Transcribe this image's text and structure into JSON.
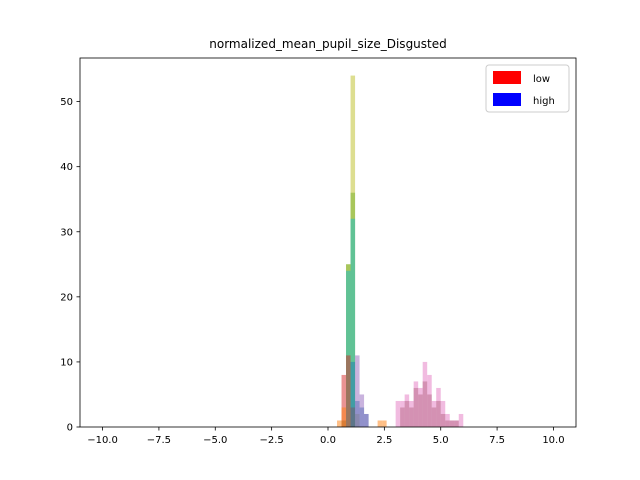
{
  "chart_data": {
    "type": "bar",
    "title": "normalized_mean_pupil_size_Disgusted",
    "xlabel": "",
    "ylabel": "",
    "xlim": [
      -11,
      11
    ],
    "ylim": [
      0,
      56.7
    ],
    "xticks": [
      -10.0,
      -7.5,
      -5.0,
      -2.5,
      0.0,
      2.5,
      5.0,
      7.5,
      10.0
    ],
    "xtick_labels": [
      "−10.0",
      "−7.5",
      "−5.0",
      "−2.5",
      "0.0",
      "2.5",
      "5.0",
      "7.5",
      "10.0"
    ],
    "yticks": [
      0,
      10,
      20,
      30,
      40,
      50
    ],
    "ytick_labels": [
      "0",
      "10",
      "20",
      "30",
      "40",
      "50"
    ],
    "bin_width": 0.2,
    "grid": false,
    "legend": {
      "position": "top-right",
      "entries": [
        {
          "label": "low",
          "color": "#ff0000"
        },
        {
          "label": "high",
          "color": "#0000ff"
        }
      ]
    },
    "series": [
      {
        "color": "#2ca02c",
        "opacity": 0.5,
        "bins": [
          [
            0.6,
            1
          ],
          [
            0.8,
            25
          ],
          [
            1.0,
            36
          ]
        ]
      },
      {
        "color": "#bcbd22",
        "opacity": 0.5,
        "bins": [
          [
            0.8,
            25
          ],
          [
            1.0,
            54
          ],
          [
            1.2,
            2
          ]
        ]
      },
      {
        "color": "#17becf",
        "opacity": 0.5,
        "bins": [
          [
            0.8,
            24
          ],
          [
            1.0,
            32
          ]
        ]
      },
      {
        "color": "#d62728",
        "opacity": 0.5,
        "bins": [
          [
            0.6,
            8
          ],
          [
            0.8,
            11
          ],
          [
            1.0,
            3
          ]
        ]
      },
      {
        "color": "#1f77b4",
        "opacity": 0.5,
        "bins": [
          [
            1.0,
            10
          ],
          [
            1.2,
            4
          ],
          [
            1.4,
            3
          ],
          [
            1.6,
            2
          ]
        ]
      },
      {
        "color": "#9467bd",
        "opacity": 0.5,
        "bins": [
          [
            1.2,
            11
          ],
          [
            1.4,
            5
          ],
          [
            1.6,
            2
          ]
        ]
      },
      {
        "color": "#ff7f0e",
        "opacity": 0.5,
        "bins": [
          [
            0.4,
            1
          ],
          [
            0.6,
            3
          ],
          [
            2.2,
            1
          ],
          [
            2.4,
            1
          ]
        ]
      },
      {
        "color": "#8c564b",
        "opacity": 0.5,
        "bins": [
          [
            3.2,
            3
          ],
          [
            3.4,
            4
          ],
          [
            3.6,
            3
          ],
          [
            3.8,
            6
          ],
          [
            4.0,
            5
          ],
          [
            4.2,
            7
          ],
          [
            4.4,
            5
          ],
          [
            4.6,
            3
          ],
          [
            4.8,
            4
          ],
          [
            5.0,
            2
          ],
          [
            5.2,
            1
          ],
          [
            5.4,
            1
          ],
          [
            5.6,
            1
          ]
        ]
      },
      {
        "color": "#e377c2",
        "opacity": 0.5,
        "bins": [
          [
            3.0,
            4
          ],
          [
            3.2,
            4
          ],
          [
            3.4,
            5
          ],
          [
            3.6,
            4
          ],
          [
            3.8,
            7
          ],
          [
            4.0,
            6
          ],
          [
            4.2,
            10
          ],
          [
            4.4,
            8
          ],
          [
            4.6,
            4
          ],
          [
            4.8,
            6
          ],
          [
            5.0,
            4
          ],
          [
            5.2,
            2
          ],
          [
            5.4,
            1
          ],
          [
            5.6,
            1
          ],
          [
            5.8,
            2
          ]
        ]
      }
    ]
  }
}
